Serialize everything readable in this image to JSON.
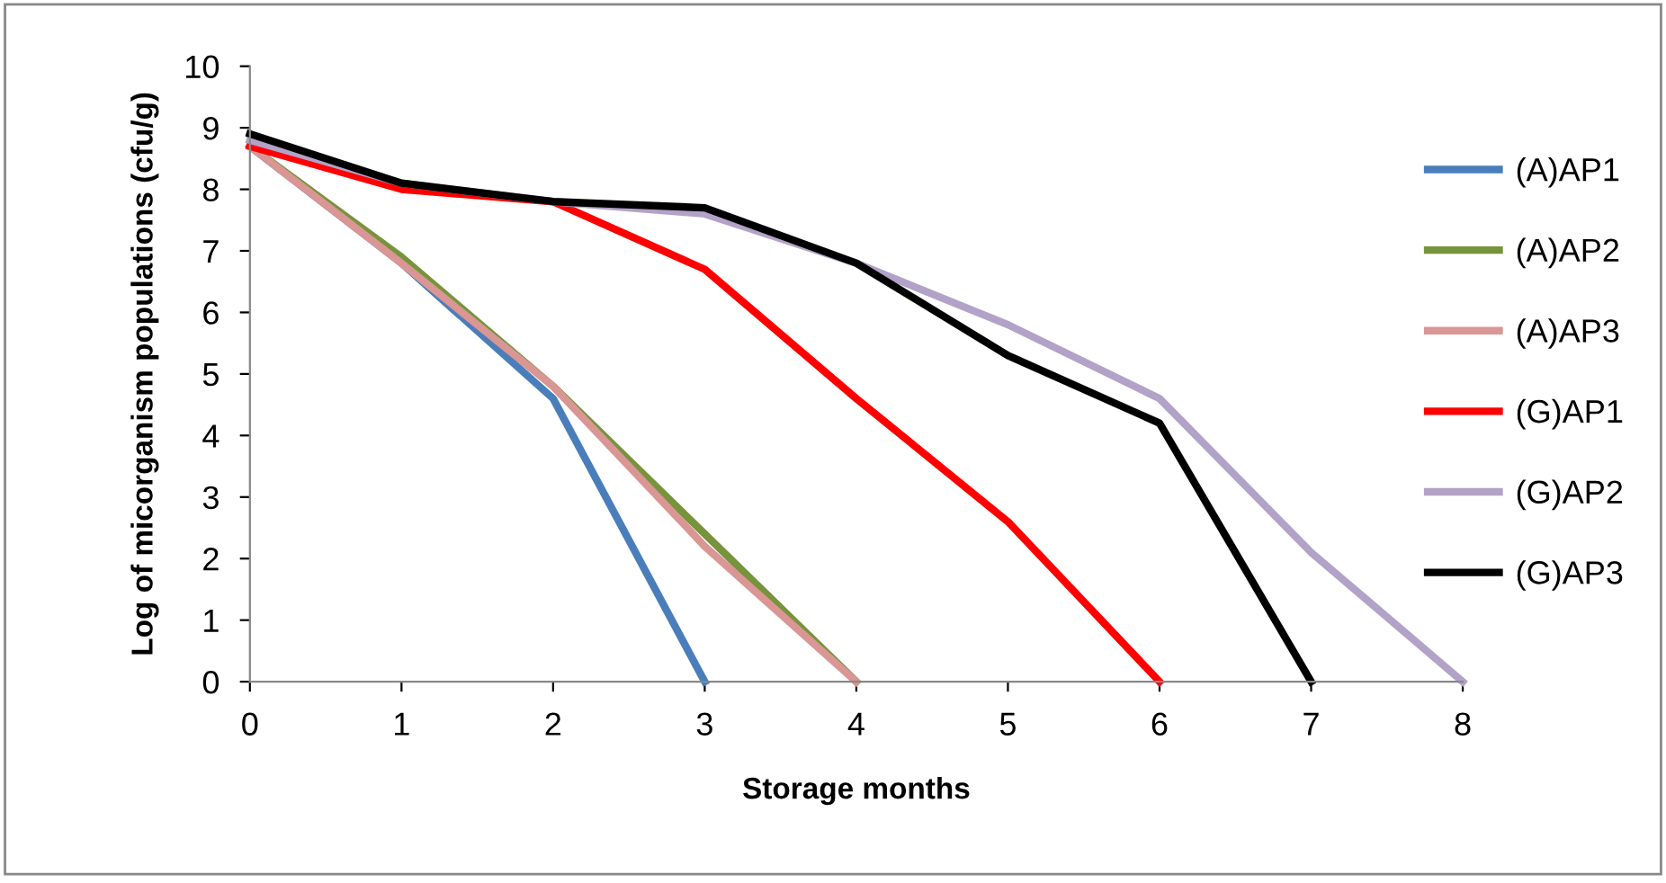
{
  "chart_data": {
    "type": "line",
    "xlabel": "Storage months",
    "ylabel": "Log of micorganism populations (cfu/g)",
    "xlim": [
      0,
      8
    ],
    "xticks": [
      0,
      1,
      2,
      3,
      4,
      5,
      6,
      7,
      8
    ],
    "ylim": [
      0,
      10
    ],
    "yticks": [
      0,
      1,
      2,
      3,
      4,
      5,
      6,
      7,
      8,
      9,
      10
    ],
    "grid": false,
    "legend": "right",
    "marker": "none",
    "line_style": "solid",
    "series": [
      {
        "name": "(A)AP1",
        "color": "#4a7ebb",
        "x": [
          0,
          1,
          2,
          3
        ],
        "values": [
          8.7,
          6.8,
          4.6,
          0
        ]
      },
      {
        "name": "(A)AP2",
        "color": "#77933c",
        "x": [
          0,
          1,
          2,
          3,
          4
        ],
        "values": [
          8.7,
          6.9,
          4.8,
          2.4,
          0
        ]
      },
      {
        "name": "(A)AP3",
        "color": "#d99694",
        "x": [
          0,
          1,
          2,
          3,
          4
        ],
        "values": [
          8.7,
          6.8,
          4.8,
          2.2,
          0
        ]
      },
      {
        "name": "(G)AP1",
        "color": "#ff0000",
        "x": [
          0,
          1,
          2,
          3,
          4,
          5,
          6
        ],
        "values": [
          8.7,
          8.0,
          7.8,
          6.7,
          4.6,
          2.6,
          0
        ]
      },
      {
        "name": "(G)AP2",
        "color": "#b3a2c7",
        "x": [
          0,
          1,
          2,
          3,
          4,
          5,
          6,
          7,
          8
        ],
        "values": [
          8.8,
          8.1,
          7.8,
          7.6,
          6.8,
          5.8,
          4.6,
          2.1,
          0
        ]
      },
      {
        "name": "(G)AP3",
        "color": "#000000",
        "x": [
          0,
          1,
          2,
          3,
          4,
          5,
          6,
          7
        ],
        "values": [
          8.9,
          8.1,
          7.8,
          7.7,
          6.8,
          5.3,
          4.2,
          0
        ]
      }
    ]
  }
}
